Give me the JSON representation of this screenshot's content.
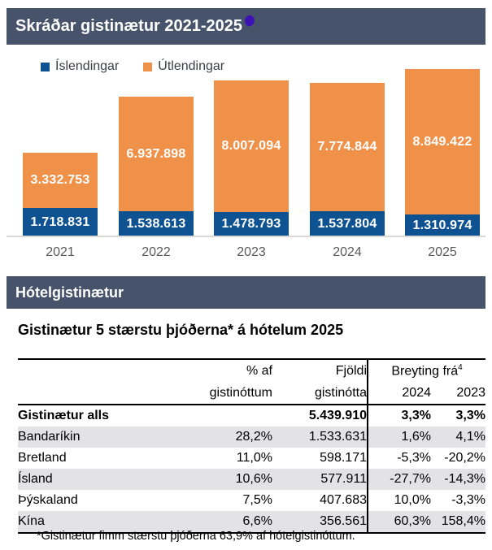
{
  "colors": {
    "header_bar": "#46536A",
    "domestic_blue": "#0F5291",
    "foreign_orange": "#F0914A",
    "row_shade": "#E2E2E7",
    "axis_line": "#D9D9D9",
    "axis_label": "#595959",
    "title_dot": "#3D12B5",
    "value_label": "#FFFFFF"
  },
  "chart_section": {
    "title": "Skráðar gistinætur 2021-2025",
    "legend": [
      {
        "label": "Íslendingar",
        "color": "#0F5291"
      },
      {
        "label": "Útlendingar",
        "color": "#F0914A"
      }
    ]
  },
  "chart_data": {
    "type": "bar",
    "stacked": true,
    "title": "Skráðar gistinætur 2021-2025",
    "categories": [
      "2021",
      "2022",
      "2023",
      "2024",
      "2025"
    ],
    "series": [
      {
        "name": "Íslendingar",
        "color": "#0F5291",
        "values": [
          1718831,
          1538613,
          1478793,
          1537804,
          1310974
        ],
        "labels": [
          "1.718.831",
          "1.538.613",
          "1.478.793",
          "1.537.804",
          "1.310.974"
        ]
      },
      {
        "name": "Útlendingar",
        "color": "#F0914A",
        "values": [
          3332753,
          6937898,
          8007094,
          7774844,
          8849422
        ],
        "labels": [
          "3.332.753",
          "6.937.898",
          "8.007.094",
          "7.774.844",
          "8.849.422"
        ]
      }
    ],
    "legend_position": "top-left",
    "grid": false,
    "value_labels_inside": true,
    "ylim": [
      0,
      10160396
    ]
  },
  "hotel_section": {
    "bar_title": "Hótelgistinætur",
    "table_title": "Gistinætur 5 stærstu þjóðerna* á hótelum 2025",
    "table": {
      "header": {
        "col2_line1": "% af",
        "col2_line2": "gistinóttum",
        "col3_line1": "Fjöldi",
        "col3_line2": "gistinótta",
        "group": "Breyting frá",
        "group_sup": "4",
        "col4": "2024",
        "col5": "2023"
      },
      "total_row": {
        "label": "Gistinætur alls",
        "pct": "",
        "count": "5.439.910",
        "chg2024": "3,3%",
        "chg2023": "3,3%"
      },
      "rows": [
        {
          "label": "Bandaríkin",
          "pct": "28,2%",
          "count": "1.533.631",
          "chg2024": "1,6%",
          "chg2023": "4,1%"
        },
        {
          "label": "Bretland",
          "pct": "11,0%",
          "count": "598.171",
          "chg2024": "-5,3%",
          "chg2023": "-20,2%"
        },
        {
          "label": "Ísland",
          "pct": "10,6%",
          "count": "577.911",
          "chg2024": "-27,7%",
          "chg2023": "-14,3%"
        },
        {
          "label": "Þýskaland",
          "pct": "7,5%",
          "count": "407.683",
          "chg2024": "10,0%",
          "chg2023": "-3,3%"
        },
        {
          "label": "Kína",
          "pct": "6,6%",
          "count": "356.561",
          "chg2024": "60,3%",
          "chg2023": "158,4%"
        }
      ],
      "footnote": "*Gistinætur fimm stærstu þjóðerna 63,9% af hótelgistinóttum."
    }
  }
}
